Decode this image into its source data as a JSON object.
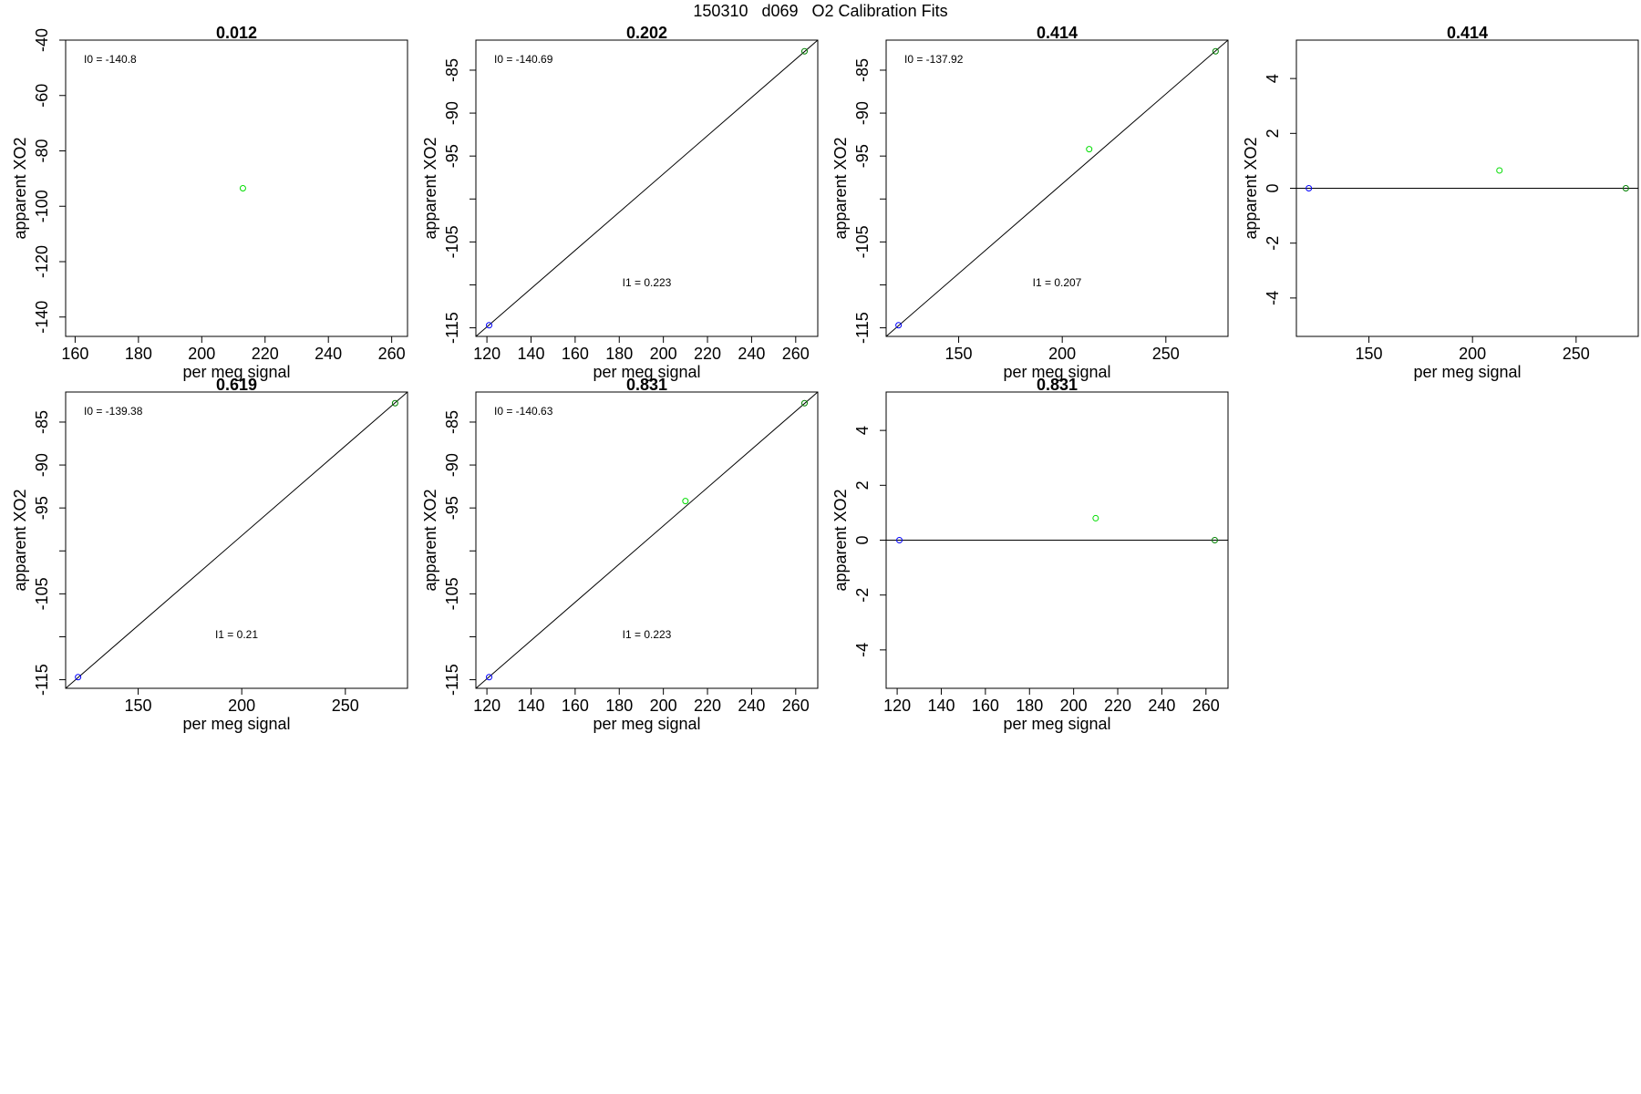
{
  "page": {
    "title": "150310   d069   O2 Calibration Fits"
  },
  "colors": {
    "axis": "#000000",
    "point_blue": "#0000ff",
    "point_green": "#00dd00",
    "point_darkgreen": "#008000",
    "fit_line": "#000000"
  },
  "chart_data": [
    {
      "type": "scatter",
      "title": "0.012",
      "xlabel": "per meg signal",
      "ylabel": "apparent XO2",
      "xlim": [
        157,
        265
      ],
      "ylim": [
        -147,
        -40
      ],
      "xticks": [
        160,
        180,
        200,
        220,
        240,
        260
      ],
      "yticks": [
        -40,
        -60,
        -80,
        -100,
        -120,
        -140
      ],
      "points": [
        {
          "x": 213,
          "y": -93.5,
          "color": "green"
        }
      ],
      "fit_line": null,
      "reference_line": null,
      "annotations": {
        "i0": "I0 =  -140.8",
        "i1": ""
      }
    },
    {
      "type": "scatter",
      "title": "0.202",
      "xlabel": "per meg signal",
      "ylabel": "apparent XO2",
      "xlim": [
        115,
        270
      ],
      "ylim": [
        -116,
        -81.5
      ],
      "xticks": [
        120,
        140,
        160,
        180,
        200,
        220,
        240,
        260
      ],
      "yticks": [
        -85,
        -90,
        -95,
        -100,
        -105,
        -110,
        -115
      ],
      "ytick_labels": [
        "-85",
        "-90",
        "-95",
        "",
        "-105",
        "",
        "-115"
      ],
      "points": [
        {
          "x": 121,
          "y": -114.7,
          "color": "blue"
        },
        {
          "x": 264,
          "y": -82.8,
          "color": "darkgreen"
        }
      ],
      "fit_line": {
        "x1": 115,
        "y1": -116.0,
        "x2": 270,
        "y2": -81.5
      },
      "reference_line": null,
      "annotations": {
        "i0": "I0 =  -140.69",
        "i1": "I1 =  0.223"
      }
    },
    {
      "type": "scatter",
      "title": "0.414",
      "xlabel": "per meg signal",
      "ylabel": "apparent XO2",
      "xlim": [
        115,
        280
      ],
      "ylim": [
        -116,
        -81.5
      ],
      "xticks": [
        150,
        200,
        250
      ],
      "yticks": [
        -85,
        -90,
        -95,
        -100,
        -105,
        -110,
        -115
      ],
      "ytick_labels": [
        "-85",
        "-90",
        "-95",
        "",
        "-105",
        "",
        "-115"
      ],
      "points": [
        {
          "x": 121,
          "y": -114.7,
          "color": "blue"
        },
        {
          "x": 213,
          "y": -94.2,
          "color": "green"
        },
        {
          "x": 274,
          "y": -82.8,
          "color": "darkgreen"
        }
      ],
      "fit_line": {
        "x1": 115,
        "y1": -116.0,
        "x2": 280,
        "y2": -81.5
      },
      "reference_line": null,
      "annotations": {
        "i0": "I0 =  -137.92",
        "i1": "I1 =  0.207"
      }
    },
    {
      "type": "scatter",
      "title": "0.414",
      "xlabel": "per meg signal",
      "ylabel": "apparent XO2",
      "xlim": [
        115,
        280
      ],
      "ylim": [
        -5.4,
        5.4
      ],
      "xticks": [
        150,
        200,
        250
      ],
      "yticks": [
        4,
        2,
        0,
        -2,
        -4
      ],
      "points": [
        {
          "x": 121,
          "y": 0,
          "color": "blue"
        },
        {
          "x": 213,
          "y": 0.65,
          "color": "green"
        },
        {
          "x": 274,
          "y": 0,
          "color": "darkgreen"
        }
      ],
      "fit_line": null,
      "reference_line": {
        "y": 0
      },
      "annotations": {
        "i0": "",
        "i1": ""
      }
    },
    {
      "type": "scatter",
      "title": "0.619",
      "xlabel": "per meg signal",
      "ylabel": "apparent XO2",
      "xlim": [
        115,
        280
      ],
      "ylim": [
        -116,
        -81.5
      ],
      "xticks": [
        150,
        200,
        250
      ],
      "yticks": [
        -85,
        -90,
        -95,
        -100,
        -105,
        -110,
        -115
      ],
      "ytick_labels": [
        "-85",
        "-90",
        "-95",
        "",
        "-105",
        "",
        "-115"
      ],
      "points": [
        {
          "x": 121,
          "y": -114.7,
          "color": "blue"
        },
        {
          "x": 274,
          "y": -82.8,
          "color": "darkgreen"
        }
      ],
      "fit_line": {
        "x1": 115,
        "y1": -116.0,
        "x2": 280,
        "y2": -81.5
      },
      "reference_line": null,
      "annotations": {
        "i0": "I0 =  -139.38",
        "i1": "I1 =  0.21"
      }
    },
    {
      "type": "scatter",
      "title": "0.831",
      "xlabel": "per meg signal",
      "ylabel": "apparent XO2",
      "xlim": [
        115,
        270
      ],
      "ylim": [
        -116,
        -81.5
      ],
      "xticks": [
        120,
        140,
        160,
        180,
        200,
        220,
        240,
        260
      ],
      "yticks": [
        -85,
        -90,
        -95,
        -100,
        -105,
        -110,
        -115
      ],
      "ytick_labels": [
        "-85",
        "-90",
        "-95",
        "",
        "-105",
        "",
        "-115"
      ],
      "points": [
        {
          "x": 121,
          "y": -114.7,
          "color": "blue"
        },
        {
          "x": 210,
          "y": -94.2,
          "color": "green"
        },
        {
          "x": 264,
          "y": -82.8,
          "color": "darkgreen"
        }
      ],
      "fit_line": {
        "x1": 115,
        "y1": -116.0,
        "x2": 270,
        "y2": -81.5
      },
      "reference_line": null,
      "annotations": {
        "i0": "I0 =  -140.63",
        "i1": "I1 =  0.223"
      }
    },
    {
      "type": "scatter",
      "title": "0.831",
      "xlabel": "per meg signal",
      "ylabel": "apparent XO2",
      "xlim": [
        115,
        270
      ],
      "ylim": [
        -5.4,
        5.4
      ],
      "xticks": [
        120,
        140,
        160,
        180,
        200,
        220,
        240,
        260
      ],
      "yticks": [
        4,
        2,
        0,
        -2,
        -4
      ],
      "points": [
        {
          "x": 121,
          "y": 0,
          "color": "blue"
        },
        {
          "x": 210,
          "y": 0.8,
          "color": "green"
        },
        {
          "x": 264,
          "y": 0,
          "color": "darkgreen"
        }
      ],
      "fit_line": null,
      "reference_line": {
        "y": 0
      },
      "annotations": {
        "i0": "",
        "i1": ""
      }
    }
  ]
}
